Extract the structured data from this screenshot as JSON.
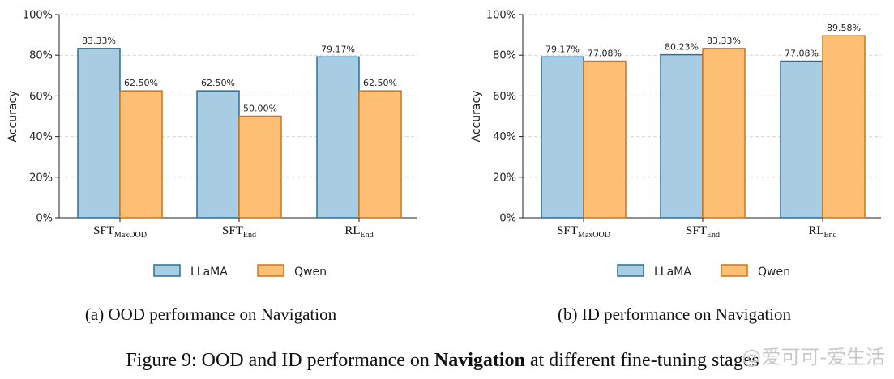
{
  "colors": {
    "llama_fill": "#a8cde3",
    "llama_stroke": "#2c6f96",
    "qwen_fill": "#fcbf73",
    "qwen_stroke": "#c9761f",
    "grid": "#d6d6d6",
    "axis": "#222222"
  },
  "chart_data": [
    {
      "type": "bar",
      "ylabel": "Accuracy",
      "ylim": [
        0,
        100
      ],
      "yticks": [
        "0%",
        "20%",
        "40%",
        "60%",
        "80%",
        "100%"
      ],
      "grid": "y-dashed",
      "legend_placement": "bottom-center",
      "categories": [
        {
          "main": "SFT",
          "sub": "MaxOOD"
        },
        {
          "main": "SFT",
          "sub": "End"
        },
        {
          "main": "RL",
          "sub": "End"
        }
      ],
      "series": [
        {
          "name": "LLaMA",
          "values": [
            83.33,
            62.5,
            79.17
          ],
          "labels": [
            "83.33%",
            "62.50%",
            "79.17%"
          ]
        },
        {
          "name": "Qwen",
          "values": [
            62.5,
            50.0,
            62.5
          ],
          "labels": [
            "62.50%",
            "50.00%",
            "62.50%"
          ]
        }
      ],
      "caption": "(a) OOD performance on Navigation"
    },
    {
      "type": "bar",
      "ylabel": "Accuracy",
      "ylim": [
        0,
        100
      ],
      "yticks": [
        "0%",
        "20%",
        "40%",
        "60%",
        "80%",
        "100%"
      ],
      "grid": "y-dashed",
      "legend_placement": "bottom-center",
      "categories": [
        {
          "main": "SFT",
          "sub": "MaxOOD"
        },
        {
          "main": "SFT",
          "sub": "End"
        },
        {
          "main": "RL",
          "sub": "End"
        }
      ],
      "series": [
        {
          "name": "LLaMA",
          "values": [
            79.17,
            80.23,
            77.08
          ],
          "labels": [
            "79.17%",
            "80.23%",
            "77.08%"
          ]
        },
        {
          "name": "Qwen",
          "values": [
            77.08,
            83.33,
            89.58
          ],
          "labels": [
            "77.08%",
            "83.33%",
            "89.58%"
          ]
        }
      ],
      "caption": "(b) ID performance on Navigation"
    }
  ],
  "figure_caption": {
    "prefix": "Figure 9: OOD and ID performance on ",
    "bold": "Navigation",
    "suffix": " at different fine-tuning stages"
  },
  "watermark": "@爱可可-爱生活"
}
